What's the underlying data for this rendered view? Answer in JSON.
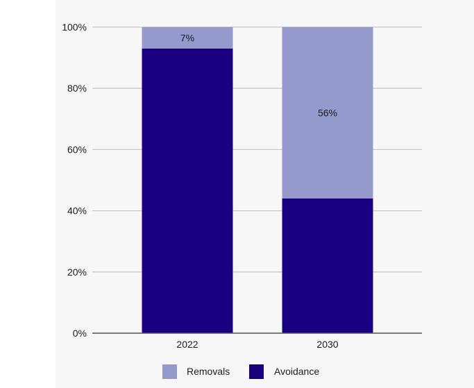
{
  "chart_data": {
    "type": "bar",
    "stacked": true,
    "normalized": true,
    "categories": [
      "2022",
      "2030"
    ],
    "series": [
      {
        "name": "Avoidance",
        "values": [
          93,
          44
        ],
        "color": "#1a0080"
      },
      {
        "name": "Removals",
        "values": [
          7,
          56
        ],
        "color": "#9599cc"
      }
    ],
    "data_labels": [
      {
        "category": "2022",
        "series": "Removals",
        "text": "7%"
      },
      {
        "category": "2030",
        "series": "Removals",
        "text": "56%"
      }
    ],
    "yaxis": {
      "ticks": [
        0,
        20,
        40,
        60,
        80,
        100
      ],
      "tick_labels": [
        "0%",
        "20%",
        "40%",
        "60%",
        "80%",
        "100%"
      ],
      "ylim": [
        0,
        100
      ]
    },
    "grid": true,
    "legend": {
      "placement": "bottom",
      "items": [
        {
          "label": "Removals",
          "color": "#9599cc"
        },
        {
          "label": "Avoidance",
          "color": "#1a0080"
        }
      ]
    },
    "title": "",
    "xlabel": "",
    "ylabel": ""
  }
}
